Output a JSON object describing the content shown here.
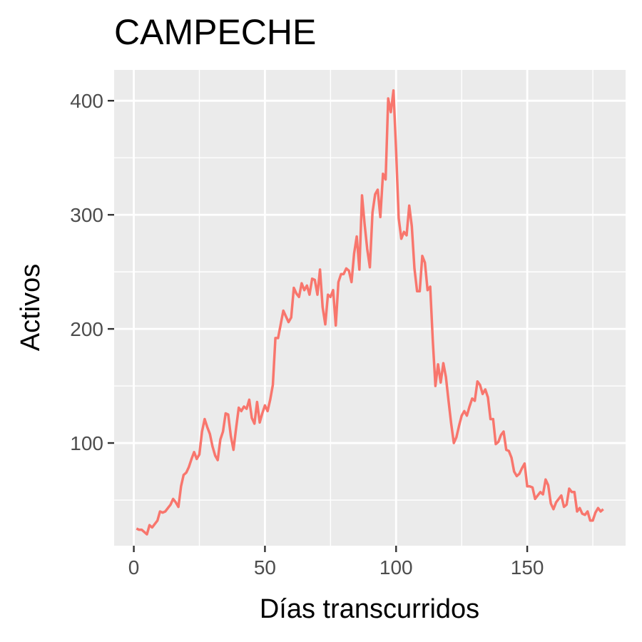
{
  "chart_data": {
    "type": "line",
    "title": "CAMPECHE",
    "xlabel": "Días transcurridos",
    "ylabel": "Activos",
    "xlim": [
      -7.5,
      187.5
    ],
    "ylim": [
      10,
      427
    ],
    "x_ticks": [
      0,
      50,
      100,
      150
    ],
    "x_tick_labels": [
      "0",
      "50",
      "100",
      "150"
    ],
    "y_ticks": [
      100,
      200,
      300,
      400
    ],
    "y_tick_labels": [
      "100",
      "200",
      "300",
      "400"
    ],
    "grid": true,
    "legend": "none",
    "series": [
      {
        "color": "#F8766D",
        "x": [
          1,
          2,
          3,
          4,
          5,
          6,
          7,
          8,
          9,
          10,
          11,
          12,
          13,
          14,
          15,
          16,
          17,
          18,
          19,
          20,
          21,
          22,
          23,
          24,
          25,
          26,
          27,
          28,
          29,
          30,
          31,
          32,
          33,
          34,
          35,
          36,
          37,
          38,
          39,
          40,
          41,
          42,
          43,
          44,
          45,
          46,
          47,
          48,
          49,
          50,
          51,
          52,
          53,
          54,
          55,
          56,
          57,
          58,
          59,
          60,
          61,
          62,
          63,
          64,
          65,
          66,
          67,
          68,
          69,
          70,
          71,
          72,
          73,
          74,
          75,
          76,
          77,
          78,
          79,
          80,
          81,
          82,
          83,
          84,
          85,
          86,
          87,
          88,
          89,
          90,
          91,
          92,
          93,
          94,
          95,
          96,
          97,
          98,
          99,
          100,
          101,
          102,
          103,
          104,
          105,
          106,
          107,
          108,
          109,
          110,
          111,
          112,
          113,
          114,
          115,
          116,
          117,
          118,
          119,
          120,
          121,
          122,
          123,
          124,
          125,
          126,
          127,
          128,
          129,
          130,
          131,
          132,
          133,
          134,
          135,
          136,
          137,
          138,
          139,
          140,
          141,
          142,
          143,
          144,
          145,
          146,
          147,
          148,
          149,
          150,
          151,
          152,
          153,
          154,
          155,
          156,
          157,
          158,
          159,
          160,
          161,
          162,
          163,
          164,
          165,
          166,
          167,
          168,
          169,
          170,
          171,
          172,
          173,
          174,
          175,
          176,
          177,
          178,
          179
        ],
        "y": [
          25,
          24,
          24,
          22,
          20,
          28,
          26,
          29,
          32,
          40,
          39,
          40,
          43,
          46,
          51,
          48,
          44,
          62,
          72,
          74,
          79,
          86,
          92,
          86,
          90,
          110,
          121,
          114,
          108,
          97,
          89,
          85,
          103,
          110,
          126,
          125,
          106,
          94,
          113,
          131,
          128,
          132,
          130,
          138,
          122,
          117,
          136,
          118,
          126,
          133,
          128,
          138,
          151,
          192,
          192,
          204,
          216,
          211,
          206,
          210,
          236,
          231,
          228,
          240,
          234,
          238,
          230,
          244,
          243,
          230,
          252,
          219,
          204,
          230,
          228,
          234,
          203,
          241,
          248,
          248,
          253,
          251,
          241,
          266,
          281,
          252,
          317,
          292,
          270,
          254,
          302,
          318,
          322,
          298,
          336,
          331,
          402,
          390,
          409,
          356,
          297,
          279,
          285,
          282,
          308,
          290,
          253,
          233,
          233,
          264,
          258,
          234,
          237,
          190,
          150,
          169,
          153,
          170,
          158,
          137,
          117,
          100,
          105,
          115,
          124,
          128,
          124,
          132,
          139,
          137,
          154,
          151,
          143,
          147,
          140,
          121,
          121,
          99,
          101,
          107,
          110,
          94,
          93,
          87,
          75,
          71,
          73,
          78,
          82,
          62,
          62,
          61,
          51,
          54,
          57,
          55,
          68,
          63,
          47,
          42,
          48,
          51,
          54,
          44,
          46,
          60,
          57,
          57,
          40,
          43,
          38,
          37,
          40,
          32,
          32,
          39,
          43,
          40,
          42
        ]
      }
    ]
  }
}
